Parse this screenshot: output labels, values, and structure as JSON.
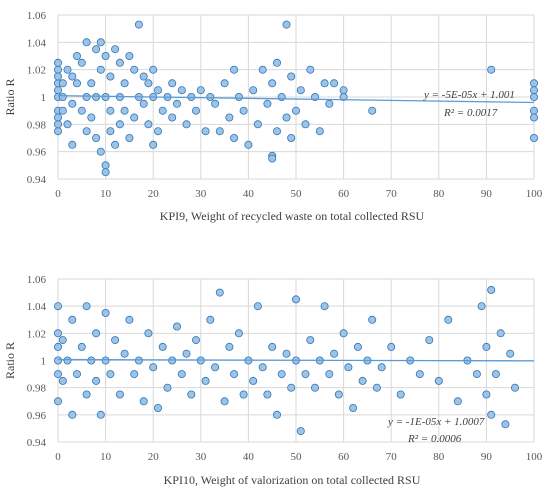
{
  "chart_data": [
    {
      "type": "scatter",
      "xlabel": "KPI9, Weight of recycled  waste on total collected RSU",
      "ylabel": "Ratio R",
      "xlim": [
        0,
        100
      ],
      "ylim": [
        0.94,
        1.06
      ],
      "x_ticks": [
        "0",
        "10",
        "20",
        "30",
        "40",
        "50",
        "60",
        "70",
        "80",
        "90",
        "100"
      ],
      "y_ticks": [
        "0.94",
        "0.96",
        "0.98",
        "1",
        "1.02",
        "1.04",
        "1.06"
      ],
      "grid": true,
      "trendline": {
        "slope": -5e-05,
        "intercept": 1.001
      },
      "equation": "y = -5E-05x + 1.001",
      "r2": "R² = 0.0017",
      "points": [
        [
          0,
          1.02
        ],
        [
          0,
          1.01
        ],
        [
          0,
          1.0
        ],
        [
          0,
          0.99
        ],
        [
          0,
          0.985
        ],
        [
          0,
          1.005
        ],
        [
          0,
          0.975
        ],
        [
          0,
          1.015
        ],
        [
          0,
          0.98
        ],
        [
          0,
          1.025
        ],
        [
          1,
          1.0
        ],
        [
          1,
          1.01
        ],
        [
          1,
          0.99
        ],
        [
          2,
          1.02
        ],
        [
          2,
          0.98
        ],
        [
          3,
          1.015
        ],
        [
          3,
          0.995
        ],
        [
          3,
          0.965
        ],
        [
          4,
          1.01
        ],
        [
          4,
          1.03
        ],
        [
          5,
          0.99
        ],
        [
          5,
          1.025
        ],
        [
          6,
          1.0
        ],
        [
          6,
          1.04
        ],
        [
          6,
          0.975
        ],
        [
          7,
          1.01
        ],
        [
          7,
          0.985
        ],
        [
          8,
          1.035
        ],
        [
          8,
          0.97
        ],
        [
          8,
          1.0
        ],
        [
          9,
          1.02
        ],
        [
          9,
          0.96
        ],
        [
          9,
          1.04
        ],
        [
          10,
          0.95
        ],
        [
          10,
          1.0
        ],
        [
          10,
          0.945
        ],
        [
          10,
          1.03
        ],
        [
          11,
          0.99
        ],
        [
          11,
          1.015
        ],
        [
          11,
          0.975
        ],
        [
          12,
          1.035
        ],
        [
          12,
          0.965
        ],
        [
          13,
          1.0
        ],
        [
          13,
          1.025
        ],
        [
          13,
          0.98
        ],
        [
          14,
          1.01
        ],
        [
          14,
          0.99
        ],
        [
          15,
          1.03
        ],
        [
          15,
          0.97
        ],
        [
          16,
          1.02
        ],
        [
          16,
          0.985
        ],
        [
          17,
          1.053
        ],
        [
          17,
          1.0
        ],
        [
          18,
          0.995
        ],
        [
          18,
          1.015
        ],
        [
          19,
          0.98
        ],
        [
          19,
          1.01
        ],
        [
          20,
          1.0
        ],
        [
          20,
          0.965
        ],
        [
          20,
          1.02
        ],
        [
          21,
          0.975
        ],
        [
          21,
          1.005
        ],
        [
          22,
          0.99
        ],
        [
          23,
          1.0
        ],
        [
          24,
          1.01
        ],
        [
          24,
          0.985
        ],
        [
          25,
          0.995
        ],
        [
          26,
          1.005
        ],
        [
          27,
          0.98
        ],
        [
          28,
          1.0
        ],
        [
          29,
          0.99
        ],
        [
          30,
          1.005
        ],
        [
          31,
          0.975
        ],
        [
          32,
          1.0
        ],
        [
          33,
          0.995
        ],
        [
          34,
          0.975
        ],
        [
          35,
          1.01
        ],
        [
          36,
          0.985
        ],
        [
          37,
          1.02
        ],
        [
          37,
          0.97
        ],
        [
          38,
          1.0
        ],
        [
          39,
          0.99
        ],
        [
          40,
          0.965
        ],
        [
          41,
          1.005
        ],
        [
          42,
          0.98
        ],
        [
          43,
          1.02
        ],
        [
          44,
          0.995
        ],
        [
          45,
          0.957
        ],
        [
          45,
          0.955
        ],
        [
          45,
          1.01
        ],
        [
          46,
          0.975
        ],
        [
          46,
          1.025
        ],
        [
          47,
          1.0
        ],
        [
          48,
          1.053
        ],
        [
          48,
          0.985
        ],
        [
          49,
          1.015
        ],
        [
          49,
          0.97
        ],
        [
          50,
          0.99
        ],
        [
          51,
          1.005
        ],
        [
          52,
          0.98
        ],
        [
          53,
          1.02
        ],
        [
          54,
          1.0
        ],
        [
          55,
          0.975
        ],
        [
          56,
          1.01
        ],
        [
          57,
          0.995
        ],
        [
          58,
          1.01
        ],
        [
          60,
          1.005
        ],
        [
          60,
          1.0
        ],
        [
          66,
          0.99
        ],
        [
          91,
          1.02
        ],
        [
          100,
          1.01
        ],
        [
          100,
          1.0
        ],
        [
          100,
          0.99
        ],
        [
          100,
          0.985
        ],
        [
          100,
          1.005
        ],
        [
          100,
          0.97
        ]
      ]
    },
    {
      "type": "scatter",
      "xlabel": "KPI10, Weight of valorization on total collected RSU",
      "ylabel": "Ratio R",
      "xlim": [
        0,
        100
      ],
      "ylim": [
        0.94,
        1.06
      ],
      "x_ticks": [
        "0",
        "10",
        "20",
        "30",
        "40",
        "50",
        "60",
        "70",
        "80",
        "90",
        "100"
      ],
      "y_ticks": [
        "0.94",
        "0.96",
        "0.98",
        "1",
        "1.02",
        "1.04",
        "1.06"
      ],
      "grid": true,
      "trendline": {
        "slope": -1e-05,
        "intercept": 1.0007
      },
      "equation": "y = -1E-05x + 1.0007",
      "r2": "R² = 0.0006",
      "points": [
        [
          0,
          1.04
        ],
        [
          0,
          1.01
        ],
        [
          0,
          0.99
        ],
        [
          0,
          0.97
        ],
        [
          0,
          1.02
        ],
        [
          0,
          1.0
        ],
        [
          1,
          0.985
        ],
        [
          1,
          1.015
        ],
        [
          2,
          1.0
        ],
        [
          3,
          0.96
        ],
        [
          3,
          1.03
        ],
        [
          4,
          0.99
        ],
        [
          5,
          1.01
        ],
        [
          6,
          0.975
        ],
        [
          6,
          1.04
        ],
        [
          7,
          1.0
        ],
        [
          8,
          0.985
        ],
        [
          8,
          1.02
        ],
        [
          9,
          0.96
        ],
        [
          10,
          1.035
        ],
        [
          10,
          1.0
        ],
        [
          11,
          0.99
        ],
        [
          12,
          1.015
        ],
        [
          13,
          0.975
        ],
        [
          14,
          1.005
        ],
        [
          15,
          1.03
        ],
        [
          16,
          0.99
        ],
        [
          17,
          1.0
        ],
        [
          18,
          0.97
        ],
        [
          19,
          1.02
        ],
        [
          20,
          0.995
        ],
        [
          21,
          0.965
        ],
        [
          22,
          1.01
        ],
        [
          23,
          0.98
        ],
        [
          24,
          1.0
        ],
        [
          25,
          1.025
        ],
        [
          26,
          0.99
        ],
        [
          27,
          1.005
        ],
        [
          28,
          0.975
        ],
        [
          29,
          1.015
        ],
        [
          30,
          1.0
        ],
        [
          31,
          0.985
        ],
        [
          32,
          1.03
        ],
        [
          33,
          0.995
        ],
        [
          34,
          1.05
        ],
        [
          35,
          0.97
        ],
        [
          36,
          1.01
        ],
        [
          37,
          0.99
        ],
        [
          38,
          1.02
        ],
        [
          39,
          0.975
        ],
        [
          40,
          1.0
        ],
        [
          41,
          0.985
        ],
        [
          42,
          1.04
        ],
        [
          43,
          0.995
        ],
        [
          44,
          0.975
        ],
        [
          45,
          1.01
        ],
        [
          46,
          0.96
        ],
        [
          47,
          0.99
        ],
        [
          48,
          1.005
        ],
        [
          49,
          0.98
        ],
        [
          50,
          1.045
        ],
        [
          50,
          1.0
        ],
        [
          51,
          0.948
        ],
        [
          52,
          0.99
        ],
        [
          53,
          1.015
        ],
        [
          54,
          0.98
        ],
        [
          55,
          1.0
        ],
        [
          56,
          1.04
        ],
        [
          57,
          0.99
        ],
        [
          58,
          1.005
        ],
        [
          59,
          0.975
        ],
        [
          60,
          1.02
        ],
        [
          61,
          0.995
        ],
        [
          62,
          0.965
        ],
        [
          63,
          1.01
        ],
        [
          64,
          0.985
        ],
        [
          65,
          1.0
        ],
        [
          66,
          1.03
        ],
        [
          67,
          0.98
        ],
        [
          68,
          0.995
        ],
        [
          70,
          1.01
        ],
        [
          72,
          0.975
        ],
        [
          74,
          1.0
        ],
        [
          76,
          0.99
        ],
        [
          78,
          1.015
        ],
        [
          80,
          0.985
        ],
        [
          82,
          1.03
        ],
        [
          84,
          0.97
        ],
        [
          86,
          1.0
        ],
        [
          88,
          0.99
        ],
        [
          89,
          1.04
        ],
        [
          90,
          1.01
        ],
        [
          90,
          0.975
        ],
        [
          91,
          1.052
        ],
        [
          91,
          0.96
        ],
        [
          92,
          0.99
        ],
        [
          93,
          1.02
        ],
        [
          94,
          0.953
        ],
        [
          95,
          1.005
        ],
        [
          96,
          0.98
        ]
      ]
    }
  ]
}
